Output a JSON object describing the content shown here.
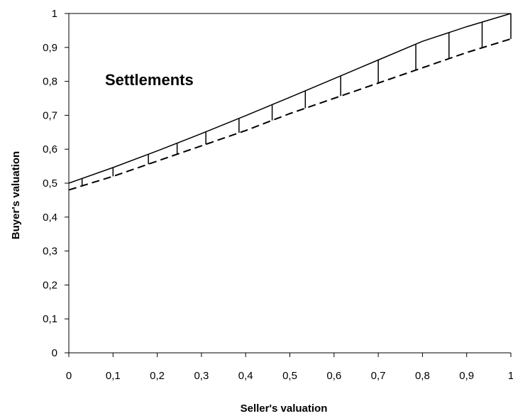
{
  "chart_data": {
    "type": "line",
    "title": "",
    "xlabel": "Seller's valuation",
    "ylabel": "Buyer's valuation",
    "xlim": [
      0,
      1
    ],
    "ylim": [
      0,
      1
    ],
    "x_ticks": [
      "0",
      "0,1",
      "0,2",
      "0,3",
      "0,4",
      "0,5",
      "0,6",
      "0,7",
      "0,8",
      "0,9",
      "1"
    ],
    "y_ticks": [
      "0",
      "0,1",
      "0,2",
      "0,3",
      "0,4",
      "0,5",
      "0,6",
      "0,7",
      "0,8",
      "0,9",
      "1"
    ],
    "grid": false,
    "legend": "none",
    "annotation": "Settlements",
    "series": [
      {
        "style": "solid",
        "x": [
          0,
          0.1,
          0.2,
          0.3,
          0.4,
          0.5,
          0.6,
          0.7,
          0.8,
          0.9,
          1
        ],
        "y": [
          0.5,
          0.546,
          0.595,
          0.646,
          0.699,
          0.753,
          0.808,
          0.863,
          0.918,
          0.961,
          1.0
        ]
      },
      {
        "style": "dashed",
        "x": [
          0,
          0.1,
          0.2,
          0.3,
          0.4,
          0.5,
          0.6,
          0.7,
          0.8,
          0.9,
          1
        ],
        "y": [
          0.48,
          0.52,
          0.565,
          0.61,
          0.655,
          0.705,
          0.75,
          0.795,
          0.84,
          0.885,
          0.925
        ]
      }
    ],
    "settlement_x": [
      0.03,
      0.1,
      0.18,
      0.245,
      0.31,
      0.385,
      0.46,
      0.535,
      0.615,
      0.7,
      0.785,
      0.86,
      0.935,
      1.0
    ]
  }
}
